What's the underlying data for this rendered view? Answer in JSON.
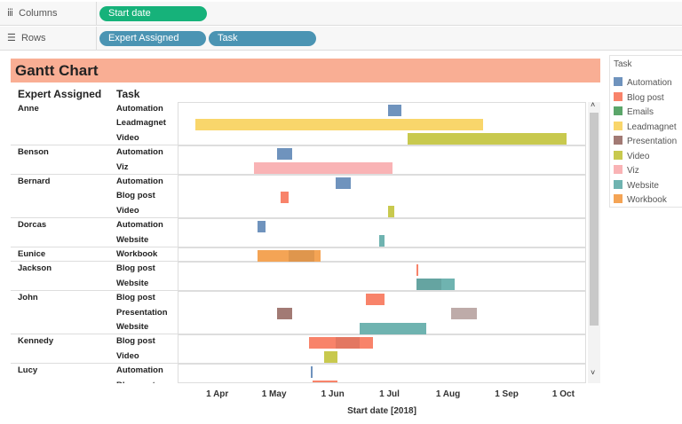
{
  "shelves": {
    "columns_label": "Columns",
    "rows_label": "Rows",
    "columns_pills": [
      "Start date"
    ],
    "rows_pills": [
      "Expert Assigned",
      "Task"
    ]
  },
  "colors": {
    "columns_pill": "#16b27a",
    "rows_pill": "#4b94b3",
    "title_bg": "#f9ae94"
  },
  "chart_data": {
    "type": "gantt",
    "title": "Gantt Chart",
    "row_headers": [
      "Expert Assigned",
      "Task"
    ],
    "xlabel": "Start date [2018]",
    "xlim": [
      "2018-03-11",
      "2018-10-13"
    ],
    "ticks": [
      {
        "date": "2018-04-01",
        "label": "1 Apr"
      },
      {
        "date": "2018-05-01",
        "label": "1 May"
      },
      {
        "date": "2018-06-01",
        "label": "1 Jun"
      },
      {
        "date": "2018-07-01",
        "label": "1 Jul"
      },
      {
        "date": "2018-08-01",
        "label": "1 Aug"
      },
      {
        "date": "2018-09-01",
        "label": "1 Sep"
      },
      {
        "date": "2018-10-01",
        "label": "1 Oct"
      }
    ],
    "legend": {
      "title": "Task",
      "position": "right",
      "items": [
        {
          "task": "Automation",
          "color": "#6f93bd"
        },
        {
          "task": "Blog post",
          "color": "#f8836a"
        },
        {
          "task": "Emails",
          "color": "#5ba66a"
        },
        {
          "task": "Leadmagnet",
          "color": "#f9d66b"
        },
        {
          "task": "Presentation",
          "color": "#a27a74"
        },
        {
          "task": "Video",
          "color": "#c8c94e"
        },
        {
          "task": "Viz",
          "color": "#f9b3b5"
        },
        {
          "task": "Website",
          "color": "#6fb3b0"
        },
        {
          "task": "Workbook",
          "color": "#f4a455"
        }
      ]
    },
    "rows": [
      {
        "expert": "Anne",
        "task": "Automation",
        "bars": [
          [
            "2018-06-30",
            "2018-07-07"
          ]
        ]
      },
      {
        "expert": "",
        "task": "Leadmagnet",
        "bars": [
          [
            "2018-03-20",
            "2018-08-19"
          ]
        ]
      },
      {
        "expert": "",
        "task": "Video",
        "bars": [
          [
            "2018-07-10",
            "2018-10-02"
          ]
        ]
      },
      {
        "expert": "Benson",
        "task": "Automation",
        "bars": [
          [
            "2018-05-02",
            "2018-05-10"
          ]
        ]
      },
      {
        "expert": "",
        "task": "Viz",
        "bars": [
          [
            "2018-04-20",
            "2018-07-02"
          ]
        ]
      },
      {
        "expert": "Bernard",
        "task": "Automation",
        "bars": [
          [
            "2018-06-02",
            "2018-06-10"
          ]
        ]
      },
      {
        "expert": "",
        "task": "Blog post",
        "bars": [
          [
            "2018-05-04",
            "2018-05-08"
          ]
        ]
      },
      {
        "expert": "",
        "task": "Video",
        "bars": [
          [
            "2018-06-30",
            "2018-07-03"
          ]
        ]
      },
      {
        "expert": "Dorcas",
        "task": "Automation",
        "bars": [
          [
            "2018-04-22",
            "2018-04-26"
          ]
        ]
      },
      {
        "expert": "",
        "task": "Website",
        "bars": [
          [
            "2018-06-25",
            "2018-06-28"
          ]
        ]
      },
      {
        "expert": "Eunice",
        "task": "Workbook",
        "bars": [
          [
            "2018-04-22",
            "2018-05-25"
          ],
          [
            "2018-05-08",
            "2018-05-22"
          ]
        ]
      },
      {
        "expert": "Jackson",
        "task": "Blog post",
        "bars": [
          [
            "2018-07-15",
            "2018-07-16"
          ]
        ]
      },
      {
        "expert": "",
        "task": "Website",
        "bars": [
          [
            "2018-07-15",
            "2018-08-04"
          ],
          [
            "2018-07-15",
            "2018-07-28"
          ]
        ]
      },
      {
        "expert": "John",
        "task": "Blog post",
        "bars": [
          [
            "2018-06-18",
            "2018-06-28"
          ]
        ]
      },
      {
        "expert": "",
        "task": "Presentation",
        "bars": [
          [
            "2018-05-02",
            "2018-05-10"
          ],
          [
            "2018-08-02",
            "2018-08-16"
          ]
        ]
      },
      {
        "expert": "",
        "task": "Website",
        "bars": [
          [
            "2018-06-15",
            "2018-07-20"
          ]
        ]
      },
      {
        "expert": "Kennedy",
        "task": "Blog post",
        "bars": [
          [
            "2018-05-19",
            "2018-06-22"
          ],
          [
            "2018-06-02",
            "2018-06-15"
          ]
        ]
      },
      {
        "expert": "",
        "task": "Video",
        "bars": [
          [
            "2018-05-27",
            "2018-06-03"
          ]
        ]
      },
      {
        "expert": "Lucy",
        "task": "Automation",
        "bars": [
          [
            "2018-05-20",
            "2018-05-20"
          ]
        ]
      },
      {
        "expert": "",
        "task": "Blog post",
        "bars": [
          [
            "2018-05-21",
            "2018-06-03"
          ]
        ]
      }
    ]
  }
}
